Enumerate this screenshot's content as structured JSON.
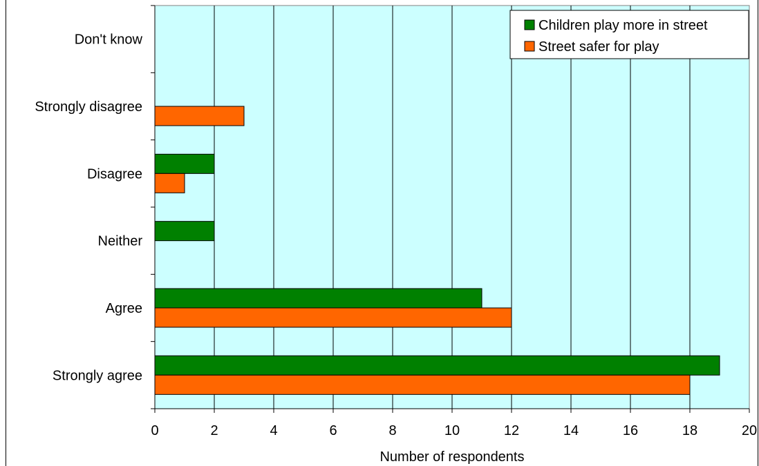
{
  "chart_data": {
    "type": "bar",
    "orientation": "horizontal",
    "categories": [
      "Strongly agree",
      "Agree",
      "Neither",
      "Disagree",
      "Strongly disagree",
      "Don't know"
    ],
    "series": [
      {
        "name": "Children play more in street",
        "color": "#008000",
        "values": [
          19,
          11,
          2,
          2,
          0,
          0
        ]
      },
      {
        "name": "Street safer for play",
        "color": "#FF6600",
        "values": [
          18,
          12,
          0,
          1,
          3,
          0
        ]
      }
    ],
    "x_ticks": [
      "0",
      "2",
      "4",
      "6",
      "8",
      "10",
      "12",
      "14",
      "16",
      "18",
      "20"
    ],
    "xlim": [
      0,
      20
    ],
    "xlabel": "Number of respondents",
    "ylabel": "",
    "title": "",
    "grid": "vertical",
    "legend_position": "top-right",
    "plot_background": "#CCFFFF"
  }
}
